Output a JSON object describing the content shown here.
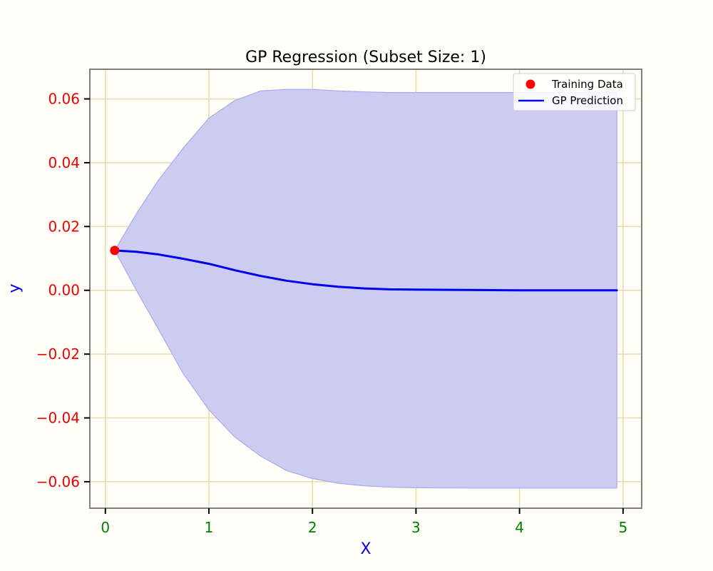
{
  "chart_data": {
    "type": "line",
    "title": "GP Regression (Subset Size: 1)",
    "xlabel": "X",
    "ylabel": "y",
    "xlim": [
      -0.15,
      5.18
    ],
    "ylim": [
      -0.0683,
      0.0693
    ],
    "xticks": [
      0,
      1,
      2,
      3,
      4,
      5
    ],
    "xtick_labels": [
      "0",
      "1",
      "2",
      "3",
      "4",
      "5"
    ],
    "yticks": [
      -0.06,
      -0.04,
      -0.02,
      0.0,
      0.02,
      0.04,
      0.06
    ],
    "ytick_labels": [
      "−0.06",
      "−0.04",
      "−0.02",
      "0.00",
      "0.02",
      "0.04",
      "0.06"
    ],
    "grid": true,
    "legend_position": "top-right",
    "legend": [
      "Training Data",
      "GP Prediction"
    ],
    "training_data": {
      "name": "Training Data",
      "x": [
        0.09
      ],
      "y": [
        0.0125
      ]
    },
    "prediction": {
      "name": "GP Prediction",
      "x": [
        0.09,
        0.3,
        0.5,
        0.75,
        1.0,
        1.25,
        1.5,
        1.75,
        2.0,
        2.25,
        2.5,
        2.75,
        3.0,
        3.5,
        4.0,
        4.5,
        4.94
      ],
      "mean": [
        0.0125,
        0.0121,
        0.0113,
        0.0099,
        0.0083,
        0.0063,
        0.0045,
        0.003,
        0.0019,
        0.0011,
        0.0006,
        0.0003,
        0.0002,
        0.0001,
        0.0,
        0.0,
        0.0
      ],
      "upper": [
        0.0125,
        0.024,
        0.034,
        0.0445,
        0.054,
        0.0595,
        0.0625,
        0.063,
        0.063,
        0.0625,
        0.0622,
        0.062,
        0.062,
        0.062,
        0.062,
        0.062,
        0.062
      ],
      "lower": [
        0.0125,
        0.0,
        -0.0115,
        -0.026,
        -0.0375,
        -0.046,
        -0.052,
        -0.0565,
        -0.059,
        -0.0605,
        -0.0613,
        -0.0617,
        -0.0619,
        -0.062,
        -0.062,
        -0.062,
        -0.062
      ]
    },
    "colors": {
      "background": "#fffff8",
      "grid": "#e6dbaa",
      "axes": "#808080",
      "mean_line": "#0000ee",
      "band_fill": "#ccccf0",
      "band_edge": "#aaaaee",
      "point": "#ff0000",
      "ytick_text": "#ee0000",
      "xtick_text": "#008000",
      "label_text": "#0000ee",
      "title_text": "#000000"
    }
  }
}
